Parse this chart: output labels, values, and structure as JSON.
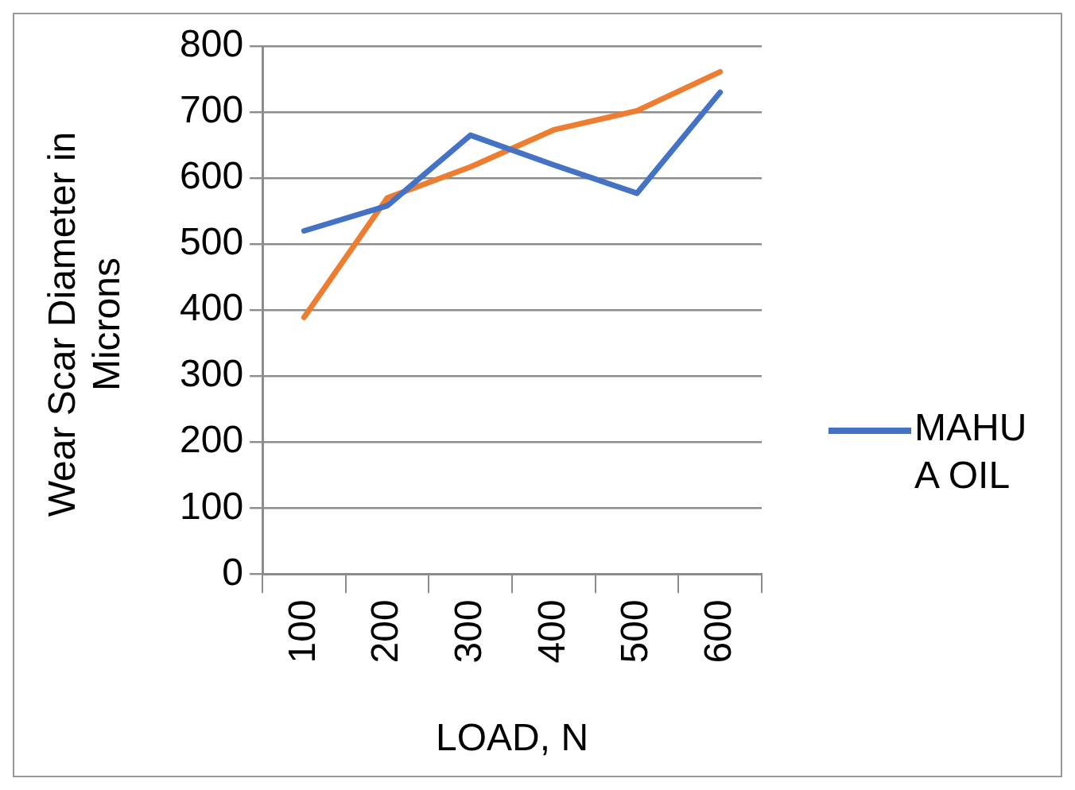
{
  "chart_data": {
    "type": "line",
    "xlabel": "LOAD, N",
    "ylabel": "Wear Scar Diameter in Microns",
    "categories": [
      "100",
      "200",
      "300",
      "400",
      "500",
      "600"
    ],
    "series": [
      {
        "name": "MAHUA OIL",
        "color": "#4472c4",
        "values": [
          520,
          558,
          665,
          620,
          577,
          730
        ]
      },
      {
        "color": "#ed7d31",
        "values": [
          389,
          570,
          617,
          673,
          702,
          761
        ]
      }
    ],
    "ylim": [
      0,
      800
    ],
    "yticks": [
      0,
      100,
      200,
      300,
      400,
      500,
      600,
      700,
      800
    ],
    "grid": "y",
    "legend": "right",
    "marker": "none",
    "line_style": "solid"
  }
}
